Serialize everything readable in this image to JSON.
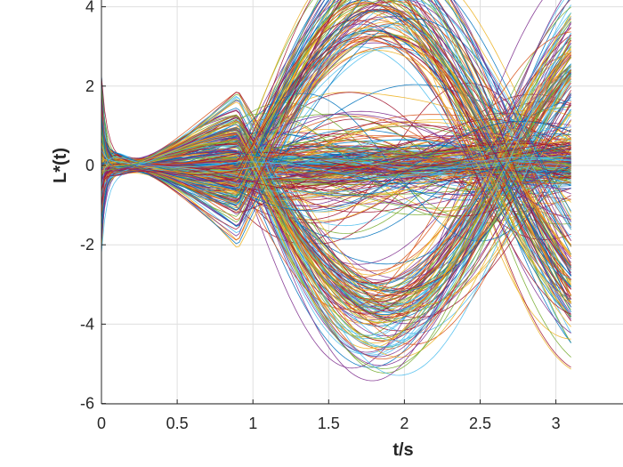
{
  "chart_data": {
    "type": "line",
    "xlabel": "t/s",
    "ylabel": "L*(t)",
    "xlim": [
      0,
      3.1
    ],
    "ylim": [
      -6,
      4.1
    ],
    "x_ticks": [
      0,
      0.5,
      1,
      1.5,
      2,
      2.5,
      3
    ],
    "x_tick_labels": [
      "0",
      "0.5",
      "1",
      "1.5",
      "2",
      "2.5",
      "3"
    ],
    "y_ticks": [
      -6,
      -4,
      -2,
      0,
      2,
      4
    ],
    "y_tick_labels": [
      "-6",
      "-4",
      "-2",
      "0",
      "2",
      "4"
    ],
    "grid": true,
    "palette": [
      "#0072BD",
      "#D95319",
      "#EDB120",
      "#7E2F8E",
      "#77AC30",
      "#4DBEEE",
      "#A2142F"
    ],
    "series_count": 420,
    "series_description": "Many trajectories starting between about -2.3 and 2.6 at t=0, quickly converging near 0 around t=0.2, then oscillating with amplitudes up to about ±4.3 over t from 0 to 3.1."
  }
}
